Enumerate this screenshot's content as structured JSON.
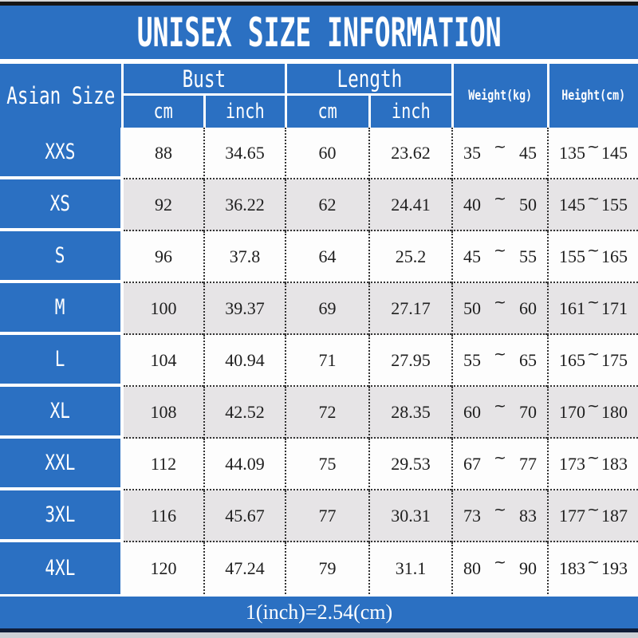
{
  "title": "UNISEX SIZE INFORMATION",
  "header": {
    "row_header": "Asian Size",
    "bust": {
      "label": "Bust",
      "sub": [
        "cm",
        "inch"
      ]
    },
    "length": {
      "label": "Length",
      "sub": [
        "cm",
        "inch"
      ]
    },
    "weight": "Weight(kg)",
    "height": "Height(cm)"
  },
  "tilde": "~",
  "rows": [
    {
      "size": "XXS",
      "bust_cm": "88",
      "bust_inch": "34.65",
      "length_cm": "60",
      "length_inch": "23.62",
      "weight": [
        "35",
        "45"
      ],
      "height": [
        "135",
        "145"
      ]
    },
    {
      "size": "XS",
      "bust_cm": "92",
      "bust_inch": "36.22",
      "length_cm": "62",
      "length_inch": "24.41",
      "weight": [
        "40",
        "50"
      ],
      "height": [
        "145",
        "155"
      ]
    },
    {
      "size": "S",
      "bust_cm": "96",
      "bust_inch": "37.8",
      "length_cm": "64",
      "length_inch": "25.2",
      "weight": [
        "45",
        "55"
      ],
      "height": [
        "155",
        "165"
      ]
    },
    {
      "size": "M",
      "bust_cm": "100",
      "bust_inch": "39.37",
      "length_cm": "69",
      "length_inch": "27.17",
      "weight": [
        "50",
        "60"
      ],
      "height": [
        "161",
        "171"
      ]
    },
    {
      "size": "L",
      "bust_cm": "104",
      "bust_inch": "40.94",
      "length_cm": "71",
      "length_inch": "27.95",
      "weight": [
        "55",
        "65"
      ],
      "height": [
        "165",
        "175"
      ]
    },
    {
      "size": "XL",
      "bust_cm": "108",
      "bust_inch": "42.52",
      "length_cm": "72",
      "length_inch": "28.35",
      "weight": [
        "60",
        "70"
      ],
      "height": [
        "170",
        "180"
      ]
    },
    {
      "size": "XXL",
      "bust_cm": "112",
      "bust_inch": "44.09",
      "length_cm": "75",
      "length_inch": "29.53",
      "weight": [
        "67",
        "77"
      ],
      "height": [
        "173",
        "183"
      ]
    },
    {
      "size": "3XL",
      "bust_cm": "116",
      "bust_inch": "45.67",
      "length_cm": "77",
      "length_inch": "30.31",
      "weight": [
        "73",
        "83"
      ],
      "height": [
        "177",
        "187"
      ]
    },
    {
      "size": "4XL",
      "bust_cm": "120",
      "bust_inch": "47.24",
      "length_cm": "79",
      "length_inch": "31.1",
      "weight": [
        "80",
        "90"
      ],
      "height": [
        "183",
        "193"
      ]
    }
  ],
  "footer": {
    "note": "1(inch)=2.54(cm)"
  },
  "colors": {
    "primary_blue": "#2b70c2",
    "alt_row_gray": "#e6e4e6",
    "navy_line": "#0f1c38"
  }
}
